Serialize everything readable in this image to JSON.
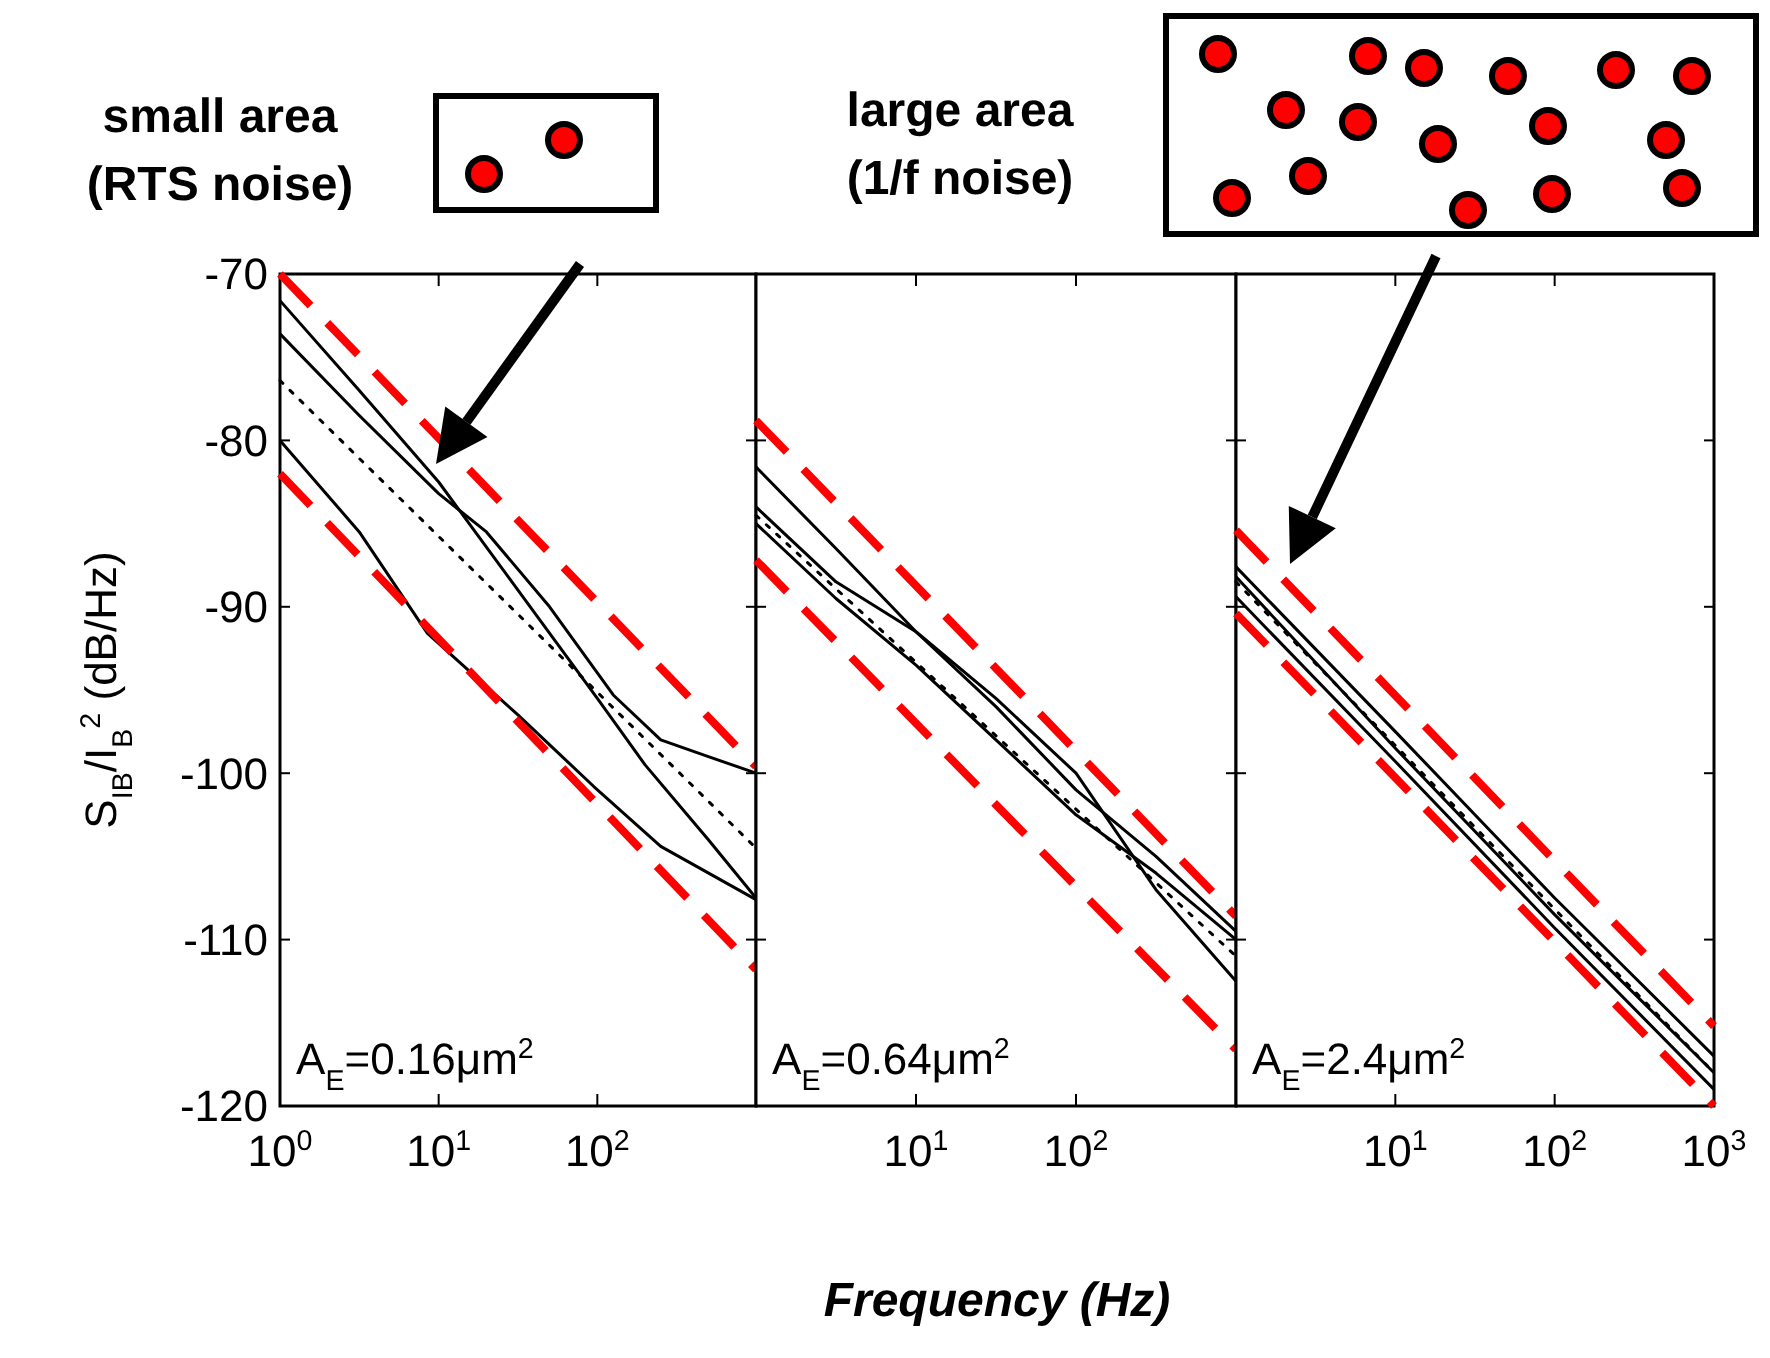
{
  "chart_data": [
    {
      "type": "line",
      "ylabel": "S$_{IB}$/I$_{B}$$^{2}$ (dB/Hz)",
      "log": "x",
      "xlim": [
        1,
        1000
      ],
      "ylim": [
        -120,
        -70
      ],
      "xticks": [
        {
          "value": 1,
          "label": "10$^{0}$"
        },
        {
          "value": 10,
          "label": "10$^{1}$"
        },
        {
          "value": 100,
          "label": "10$^{2}$"
        }
      ],
      "yticks": [
        -70,
        -80,
        -90,
        -100,
        -110,
        -120
      ],
      "tick_labels": true,
      "annotations": [
        "A$_{E}$=0.16μm$^{2}$",
        "small area\n(RTS noise)"
      ],
      "series": [
        {
          "color": "#000000",
          "line_style": "solid",
          "x": [
            1,
            3.16,
            10,
            20,
            50,
            126,
            251,
            501,
            1000
          ],
          "values": [
            -73.6,
            -78.5,
            -83.2,
            -85.5,
            -90,
            -95.3,
            -98,
            -99,
            -100
          ]
        },
        {
          "color": "#000000",
          "line_style": "solid",
          "x": [
            1,
            3.16,
            10,
            31.6,
            100,
            200,
            501,
            1000
          ],
          "values": [
            -71.6,
            -77,
            -82.5,
            -89,
            -95.5,
            -99.5,
            -104,
            -107.5
          ]
        },
        {
          "color": "#000000",
          "line_style": "solid",
          "x": [
            1,
            3.16,
            8.5,
            31.6,
            95,
            251,
            1000
          ],
          "values": [
            -80,
            -85.5,
            -91.6,
            -96.5,
            -100.8,
            -104.4,
            -107.6
          ]
        },
        {
          "color": "#000000",
          "line_style": "dotted",
          "x": [
            1,
            1000
          ],
          "values": [
            -76.4,
            -104.5
          ]
        },
        {
          "color": "#ff0000",
          "line_style": "dashed",
          "x": [
            1,
            1000
          ],
          "values": [
            -70,
            -99.6
          ]
        },
        {
          "color": "#ff0000",
          "line_style": "dashed",
          "x": [
            1,
            1000
          ],
          "values": [
            -82,
            -111.8
          ]
        }
      ]
    },
    {
      "type": "line",
      "xlabel": "Frequency (Hz)",
      "log": "x",
      "xlim": [
        1,
        1000
      ],
      "ylim": [
        -120,
        -70
      ],
      "xticks": [
        {
          "value": 10,
          "label": "10$^{1}$"
        },
        {
          "value": 100,
          "label": "10$^{2}$"
        }
      ],
      "yticks": [
        {
          "value": -70,
          "label": null
        },
        {
          "value": -80,
          "label": null
        },
        {
          "value": -90,
          "label": null
        },
        {
          "value": -100,
          "label": null
        },
        {
          "value": -110,
          "label": null
        },
        {
          "value": -120,
          "label": null
        }
      ],
      "tick_labels": "x",
      "annotations": [
        "A$_{E}$=0.64μm$^{2}$"
      ],
      "series": [
        {
          "color": "#000000",
          "line_style": "solid",
          "x": [
            1,
            3.16,
            10,
            31.6,
            100,
            316,
            1000
          ],
          "values": [
            -81.6,
            -86.5,
            -91.5,
            -96,
            -101,
            -105,
            -109.5
          ]
        },
        {
          "color": "#000000",
          "line_style": "solid",
          "x": [
            1,
            3.16,
            10,
            31.6,
            100,
            316,
            1000
          ],
          "values": [
            -84,
            -88.5,
            -91.5,
            -95.5,
            -100,
            -107,
            -112.5
          ]
        },
        {
          "color": "#000000",
          "line_style": "solid",
          "x": [
            1,
            3.16,
            10,
            31.6,
            100,
            316,
            1000
          ],
          "values": [
            -85,
            -89.5,
            -93.5,
            -98,
            -102.5,
            -106,
            -110
          ]
        },
        {
          "color": "#000000",
          "line_style": "dotted",
          "x": [
            1,
            1000
          ],
          "values": [
            -84.5,
            -111
          ]
        },
        {
          "color": "#ff0000",
          "line_style": "dashed",
          "x": [
            1,
            1000
          ],
          "values": [
            -78.8,
            -108.6
          ]
        },
        {
          "color": "#ff0000",
          "line_style": "dashed",
          "x": [
            1,
            1000
          ],
          "values": [
            -87.2,
            -116.6
          ]
        }
      ]
    },
    {
      "type": "line",
      "log": "x",
      "xlim": [
        1,
        1000
      ],
      "ylim": [
        -120,
        -70
      ],
      "xticks": [
        {
          "value": 10,
          "label": "10$^{1}$"
        },
        {
          "value": 100,
          "label": "10$^{2}$"
        },
        {
          "value": 1000,
          "label": "10$^{3}$"
        }
      ],
      "yticks": [
        {
          "value": -70,
          "label": null
        },
        {
          "value": -80,
          "label": null
        },
        {
          "value": -90,
          "label": null
        },
        {
          "value": -100,
          "label": null
        },
        {
          "value": -110,
          "label": null
        },
        {
          "value": -120,
          "label": null
        }
      ],
      "tick_labels": "x",
      "annotations": [
        "A$_{E}$=2.4μm$^{2}$",
        "large area\n(1/f noise)"
      ],
      "series": [
        {
          "color": "#000000",
          "line_style": "solid",
          "x": [
            1,
            10,
            100,
            1000
          ],
          "values": [
            -87.6,
            -97.5,
            -107.5,
            -117
          ]
        },
        {
          "color": "#000000",
          "line_style": "solid",
          "x": [
            1,
            10,
            100,
            1000
          ],
          "values": [
            -88.2,
            -98.5,
            -108.5,
            -118
          ]
        },
        {
          "color": "#000000",
          "line_style": "solid",
          "x": [
            1,
            10,
            100,
            1000
          ],
          "values": [
            -89.4,
            -99.3,
            -109.3,
            -119
          ]
        },
        {
          "color": "#000000",
          "line_style": "dotted",
          "x": [
            1,
            1000
          ],
          "values": [
            -88.5,
            -118
          ]
        },
        {
          "color": "#ff0000",
          "line_style": "dashed",
          "x": [
            1,
            1000
          ],
          "values": [
            -85.4,
            -115.2
          ]
        },
        {
          "color": "#ff0000",
          "line_style": "dashed",
          "x": [
            1,
            1000
          ],
          "values": [
            -90.4,
            -120
          ]
        }
      ]
    }
  ]
}
